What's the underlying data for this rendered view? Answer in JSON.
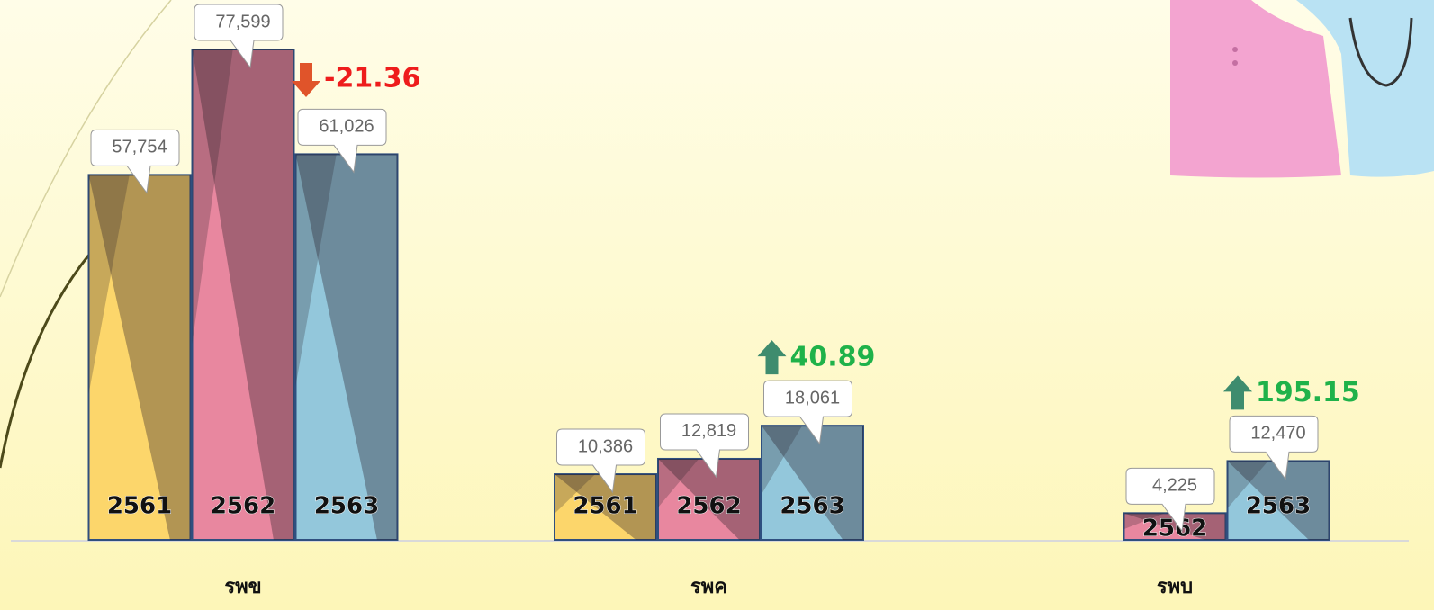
{
  "chart_data": {
    "type": "bar",
    "categories": [
      "รพข",
      "รพค",
      "รพบ"
    ],
    "series": [
      {
        "name": "2561",
        "color": "#fcd66b",
        "values": [
          57754,
          10386,
          null
        ],
        "value_labels": [
          "57,754",
          "10,386",
          null
        ]
      },
      {
        "name": "2562",
        "color": "#e8879f",
        "values": [
          77599,
          12819,
          4225
        ],
        "value_labels": [
          "77,599",
          "12,819",
          "4,225"
        ]
      },
      {
        "name": "2563",
        "color": "#93c7db",
        "values": [
          61026,
          18061,
          12470
        ],
        "value_labels": [
          "61,026",
          "18,061",
          "12,470"
        ]
      }
    ],
    "changes": [
      -21.36,
      40.89,
      195.15
    ],
    "change_colors": {
      "up": "#1fb24a",
      "down": "#ee1c1c"
    }
  }
}
